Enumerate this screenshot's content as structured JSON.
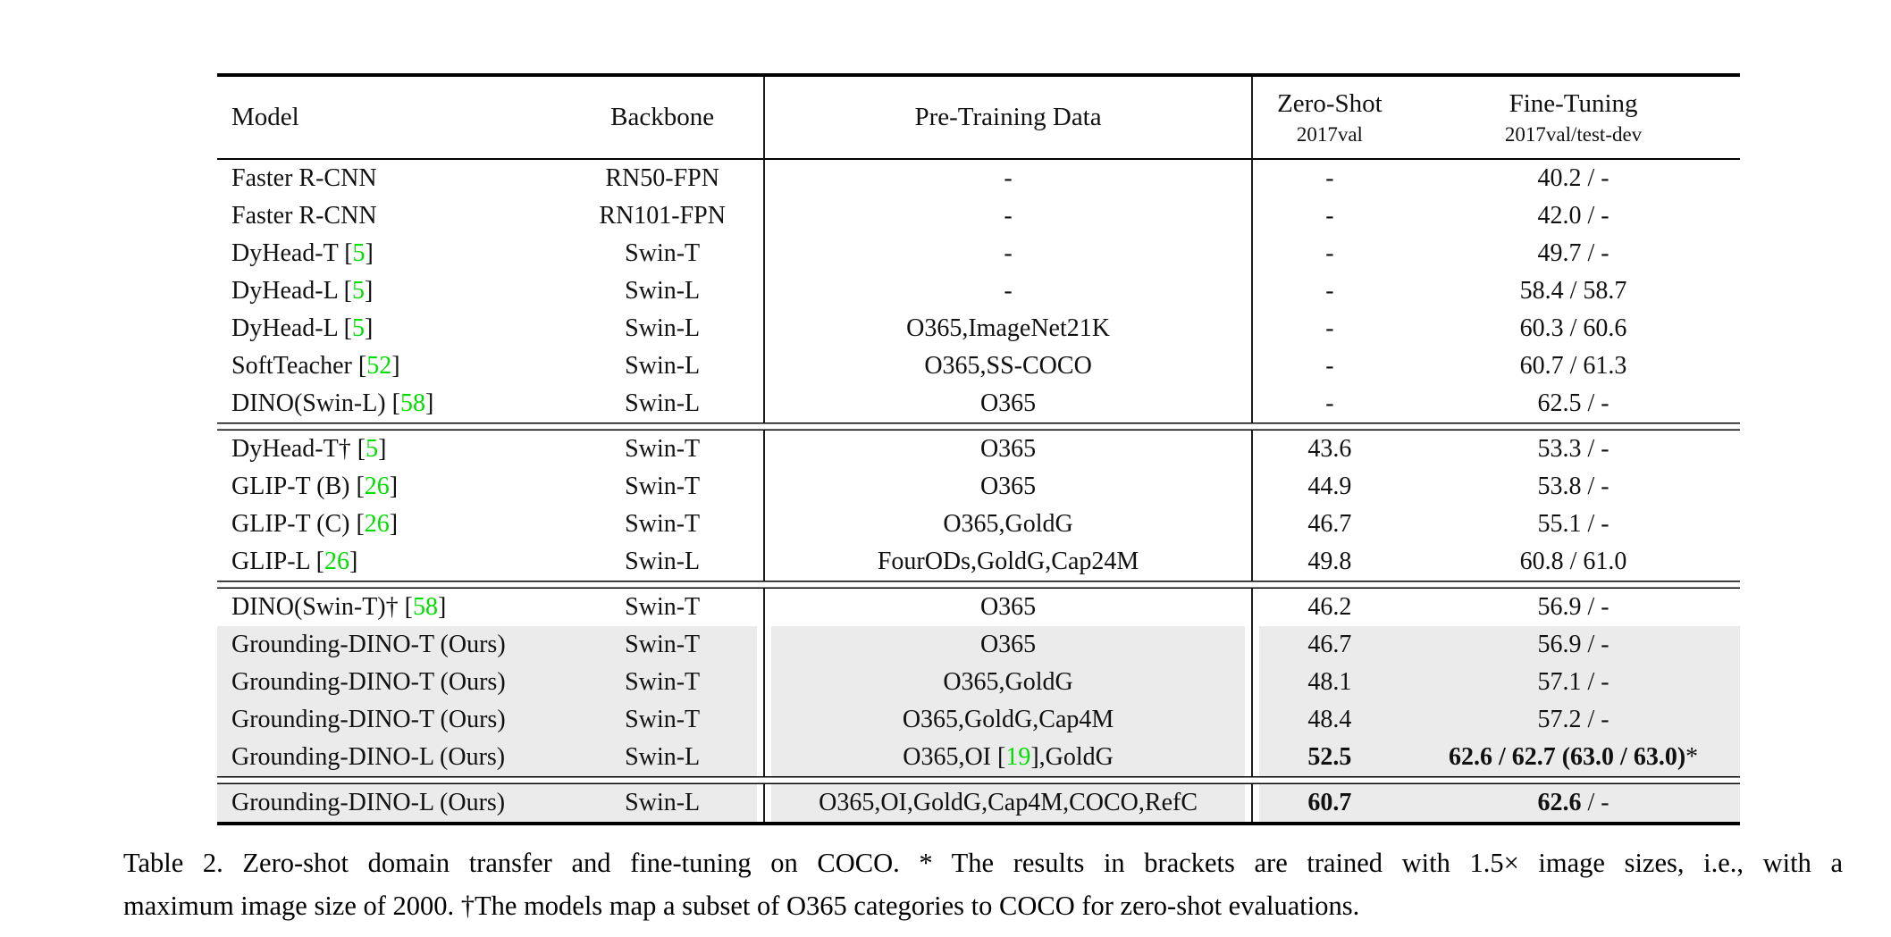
{
  "colors": {
    "citation_green": "#00dd00",
    "row_highlight": "#ebebeb",
    "rule_black": "#000000"
  },
  "header": {
    "model": "Model",
    "backbone": "Backbone",
    "pretrain": "Pre-Training Data",
    "zeroshot_main": "Zero-Shot",
    "zeroshot_sub": "2017val",
    "finetune_main": "Fine-Tuning",
    "finetune_sub": "2017val/test-dev"
  },
  "sections": [
    {
      "rows": [
        {
          "shaded": false,
          "model": [
            {
              "t": "Faster R-CNN"
            }
          ],
          "backbone": "RN50-FPN",
          "pretrain": [
            {
              "t": "-"
            }
          ],
          "zeroshot": [
            {
              "t": "-"
            }
          ],
          "finetune": [
            {
              "t": "40.2 / -"
            }
          ]
        },
        {
          "shaded": false,
          "model": [
            {
              "t": "Faster R-CNN"
            }
          ],
          "backbone": "RN101-FPN",
          "pretrain": [
            {
              "t": "-"
            }
          ],
          "zeroshot": [
            {
              "t": "-"
            }
          ],
          "finetune": [
            {
              "t": "42.0 / -"
            }
          ]
        },
        {
          "shaded": false,
          "model": [
            {
              "t": "DyHead-T ["
            },
            {
              "t": "5",
              "g": true
            },
            {
              "t": "]"
            }
          ],
          "backbone": "Swin-T",
          "pretrain": [
            {
              "t": "-"
            }
          ],
          "zeroshot": [
            {
              "t": "-"
            }
          ],
          "finetune": [
            {
              "t": "49.7 / -"
            }
          ]
        },
        {
          "shaded": false,
          "model": [
            {
              "t": "DyHead-L ["
            },
            {
              "t": "5",
              "g": true
            },
            {
              "t": "]"
            }
          ],
          "backbone": "Swin-L",
          "pretrain": [
            {
              "t": "-"
            }
          ],
          "zeroshot": [
            {
              "t": "-"
            }
          ],
          "finetune": [
            {
              "t": "58.4 / 58.7"
            }
          ]
        },
        {
          "shaded": false,
          "model": [
            {
              "t": "DyHead-L ["
            },
            {
              "t": "5",
              "g": true
            },
            {
              "t": "]"
            }
          ],
          "backbone": "Swin-L",
          "pretrain": [
            {
              "t": "O365,ImageNet21K"
            }
          ],
          "zeroshot": [
            {
              "t": "-"
            }
          ],
          "finetune": [
            {
              "t": "60.3 / 60.6"
            }
          ]
        },
        {
          "shaded": false,
          "model": [
            {
              "t": "SoftTeacher ["
            },
            {
              "t": "52",
              "g": true
            },
            {
              "t": "]"
            }
          ],
          "backbone": "Swin-L",
          "pretrain": [
            {
              "t": "O365,SS-COCO"
            }
          ],
          "zeroshot": [
            {
              "t": "-"
            }
          ],
          "finetune": [
            {
              "t": "60.7 / 61.3"
            }
          ]
        },
        {
          "shaded": false,
          "model": [
            {
              "t": "DINO(Swin-L) ["
            },
            {
              "t": "58",
              "g": true
            },
            {
              "t": "]"
            }
          ],
          "backbone": "Swin-L",
          "pretrain": [
            {
              "t": "O365"
            }
          ],
          "zeroshot": [
            {
              "t": "-"
            }
          ],
          "finetune": [
            {
              "t": "62.5 / -"
            }
          ]
        }
      ]
    },
    {
      "rows": [
        {
          "shaded": false,
          "model": [
            {
              "t": "DyHead-T† ["
            },
            {
              "t": "5",
              "g": true
            },
            {
              "t": "]"
            }
          ],
          "backbone": "Swin-T",
          "pretrain": [
            {
              "t": "O365"
            }
          ],
          "zeroshot": [
            {
              "t": "43.6"
            }
          ],
          "finetune": [
            {
              "t": "53.3 / -"
            }
          ]
        },
        {
          "shaded": false,
          "model": [
            {
              "t": "GLIP-T (B) ["
            },
            {
              "t": "26",
              "g": true
            },
            {
              "t": "]"
            }
          ],
          "backbone": "Swin-T",
          "pretrain": [
            {
              "t": "O365"
            }
          ],
          "zeroshot": [
            {
              "t": "44.9"
            }
          ],
          "finetune": [
            {
              "t": "53.8 / -"
            }
          ]
        },
        {
          "shaded": false,
          "model": [
            {
              "t": "GLIP-T (C) ["
            },
            {
              "t": "26",
              "g": true
            },
            {
              "t": "]"
            }
          ],
          "backbone": "Swin-T",
          "pretrain": [
            {
              "t": "O365,GoldG"
            }
          ],
          "zeroshot": [
            {
              "t": "46.7"
            }
          ],
          "finetune": [
            {
              "t": "55.1 / -"
            }
          ]
        },
        {
          "shaded": false,
          "model": [
            {
              "t": "GLIP-L ["
            },
            {
              "t": "26",
              "g": true
            },
            {
              "t": "]"
            }
          ],
          "backbone": "Swin-L",
          "pretrain": [
            {
              "t": "FourODs,GoldG,Cap24M"
            }
          ],
          "zeroshot": [
            {
              "t": "49.8"
            }
          ],
          "finetune": [
            {
              "t": "60.8 / 61.0"
            }
          ]
        }
      ]
    },
    {
      "rows": [
        {
          "shaded": false,
          "model": [
            {
              "t": "DINO(Swin-T)† ["
            },
            {
              "t": "58",
              "g": true
            },
            {
              "t": "]"
            }
          ],
          "backbone": "Swin-T",
          "pretrain": [
            {
              "t": "O365"
            }
          ],
          "zeroshot": [
            {
              "t": "46.2"
            }
          ],
          "finetune": [
            {
              "t": "56.9 / -"
            }
          ]
        },
        {
          "shaded": true,
          "model": [
            {
              "t": "Grounding-DINO-T (Ours)"
            }
          ],
          "backbone": "Swin-T",
          "pretrain": [
            {
              "t": "O365"
            }
          ],
          "zeroshot": [
            {
              "t": "46.7"
            }
          ],
          "finetune": [
            {
              "t": "56.9 / -"
            }
          ]
        },
        {
          "shaded": true,
          "model": [
            {
              "t": "Grounding-DINO-T (Ours)"
            }
          ],
          "backbone": "Swin-T",
          "pretrain": [
            {
              "t": "O365,GoldG"
            }
          ],
          "zeroshot": [
            {
              "t": "48.1"
            }
          ],
          "finetune": [
            {
              "t": "57.1 / -"
            }
          ]
        },
        {
          "shaded": true,
          "model": [
            {
              "t": "Grounding-DINO-T (Ours)"
            }
          ],
          "backbone": "Swin-T",
          "pretrain": [
            {
              "t": "O365,GoldG,Cap4M"
            }
          ],
          "zeroshot": [
            {
              "t": "48.4"
            }
          ],
          "finetune": [
            {
              "t": "57.2 / -"
            }
          ]
        },
        {
          "shaded": true,
          "model": [
            {
              "t": "Grounding-DINO-L (Ours)"
            }
          ],
          "backbone": "Swin-L",
          "pretrain": [
            {
              "t": "O365,OI ["
            },
            {
              "t": "19",
              "g": true
            },
            {
              "t": "],GoldG"
            }
          ],
          "zeroshot": [
            {
              "t": "52.5",
              "b": true
            }
          ],
          "finetune": [
            {
              "t": "62.6 / 62.7 (63.0 / 63.0)",
              "b": true
            },
            {
              "t": "*"
            }
          ]
        }
      ]
    },
    {
      "rows": [
        {
          "shaded": true,
          "model": [
            {
              "t": "Grounding-DINO-L (Ours)"
            }
          ],
          "backbone": "Swin-L",
          "pretrain": [
            {
              "t": "O365,OI,GoldG,Cap4M,COCO,RefC"
            }
          ],
          "zeroshot": [
            {
              "t": "60.7",
              "b": true
            }
          ],
          "finetune": [
            {
              "t": "62.6",
              "b": true
            },
            {
              "t": " / -"
            }
          ]
        }
      ]
    }
  ],
  "caption": {
    "line1": "Table 2.  Zero-shot domain transfer and fine-tuning on COCO. * The results in brackets are trained with 1.5× image sizes, i.e., with a",
    "line2": "maximum image size of 2000. †The models map a subset of O365 categories to COCO for zero-shot evaluations."
  }
}
